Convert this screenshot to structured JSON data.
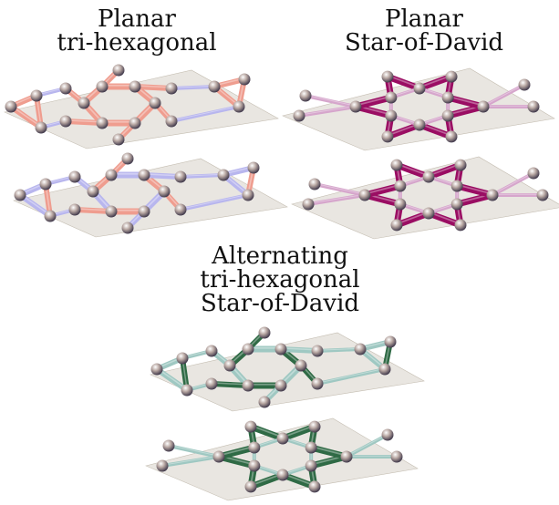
{
  "labels": {
    "top_left": [
      "Planar",
      "tri-hexagonal"
    ],
    "top_right": [
      "Planar",
      "Star-of-David"
    ],
    "bottom": [
      "Alternating",
      "tri-hexagonal",
      "Star-of-David"
    ]
  },
  "colors": {
    "plane": "#d7d2c8",
    "plane_edge": "#c4bdb1",
    "trihex_bond": "#ef9d8f",
    "trihex_bond_alt": "#b8b6ee",
    "sod_bond": "#9a0d63",
    "sod_bond_light": "#d6a6cc",
    "alt_bond": "#2f6a45",
    "alt_bond_light": "#9fc8c2",
    "sphere_highlight": "#ffffff",
    "sphere_mid": "#b8a7a2",
    "sphere_dark": "#3b3447"
  }
}
